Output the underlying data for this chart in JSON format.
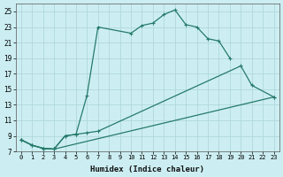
{
  "xlabel": "Humidex (Indice chaleur)",
  "bg_color": "#cceef2",
  "grid_color": "#b0d8dc",
  "line_color": "#267a6a",
  "xlim": [
    -0.5,
    23.5
  ],
  "ylim": [
    7,
    26
  ],
  "xticks": [
    0,
    1,
    2,
    3,
    4,
    5,
    6,
    7,
    8,
    9,
    10,
    11,
    12,
    13,
    14,
    15,
    16,
    17,
    18,
    19,
    20,
    21,
    22,
    23
  ],
  "yticks": [
    7,
    9,
    11,
    13,
    15,
    17,
    19,
    21,
    23,
    25
  ],
  "line1_x": [
    0,
    1,
    2,
    3,
    4,
    5,
    6,
    7,
    10,
    11,
    12,
    13,
    14,
    15,
    16,
    17,
    18,
    19
  ],
  "line1_y": [
    8.5,
    7.8,
    7.4,
    7.3,
    9.0,
    9.2,
    14.2,
    23.0,
    22.2,
    23.2,
    23.5,
    24.6,
    25.2,
    23.3,
    23.0,
    21.5,
    21.2,
    19.0
  ],
  "line2_x": [
    0,
    1,
    2,
    3,
    4,
    5,
    6,
    7,
    20,
    21,
    23
  ],
  "line2_y": [
    8.5,
    7.8,
    7.4,
    7.3,
    9.0,
    9.2,
    9.4,
    9.6,
    18.0,
    15.5,
    14.0
  ],
  "line3_x": [
    0,
    1,
    2,
    3,
    23
  ],
  "line3_y": [
    8.5,
    7.8,
    7.4,
    7.3,
    14.0
  ]
}
